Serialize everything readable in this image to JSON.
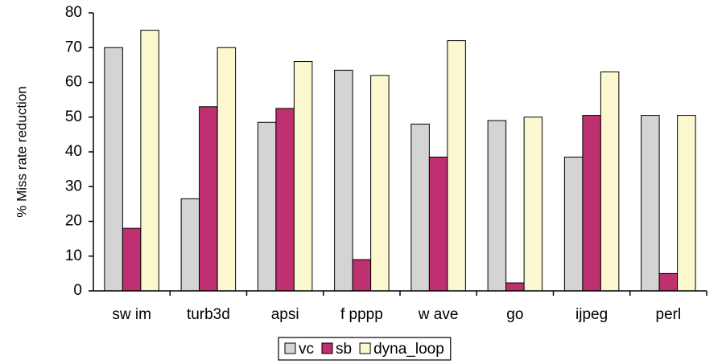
{
  "chart_data": {
    "type": "bar",
    "title": "",
    "xlabel": "",
    "ylabel": "% Miss rate reduction",
    "ylim": [
      0,
      80
    ],
    "yticks": [
      "0",
      "10",
      "20",
      "30",
      "40",
      "50",
      "60",
      "70",
      "80"
    ],
    "grid": false,
    "legend_position": "bottom",
    "categories": [
      "sw im",
      "turb3d",
      "apsi",
      "f pppp",
      "w ave",
      "go",
      "ijpeg",
      "perl"
    ],
    "series": [
      {
        "name": "vc",
        "color": "#d4d4d4",
        "values": [
          70,
          26.5,
          48.5,
          63.5,
          48,
          49,
          38.5,
          50.5
        ]
      },
      {
        "name": "sb",
        "color": "#bf3070",
        "values": [
          18,
          53,
          52.5,
          9,
          38.5,
          2.3,
          50.5,
          5
        ]
      },
      {
        "name": "dyna_loop",
        "color": "#fbf8d0",
        "values": [
          75,
          70,
          66,
          62,
          72,
          50,
          63,
          50.5
        ]
      }
    ]
  }
}
